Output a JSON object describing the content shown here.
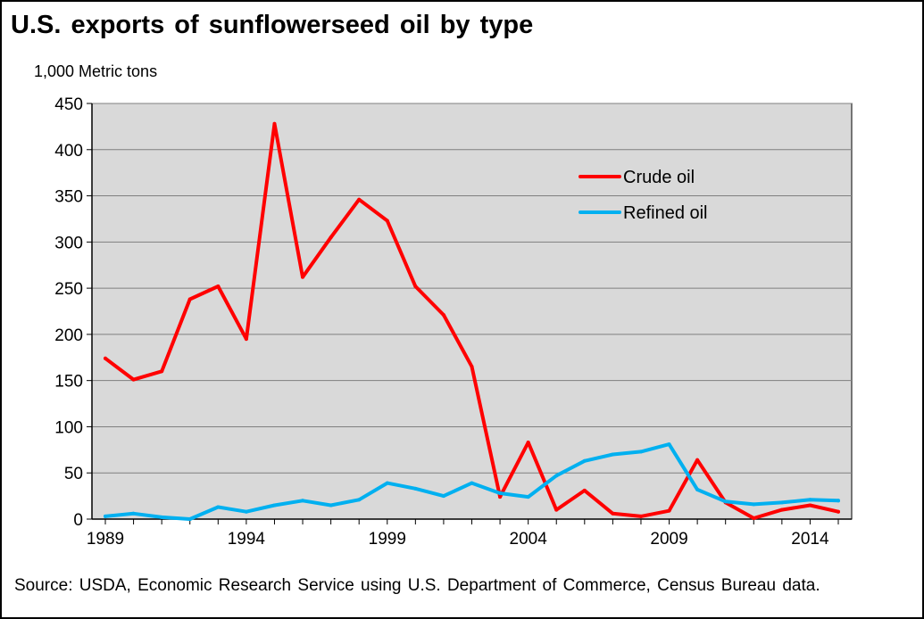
{
  "chart_data": {
    "type": "line",
    "title": "U.S. exports of sunflowerseed oil by type",
    "ylabel": "1,000 Metric tons",
    "xlabel": "",
    "x": [
      1989,
      1990,
      1991,
      1992,
      1993,
      1994,
      1995,
      1996,
      1997,
      1998,
      1999,
      2000,
      2001,
      2002,
      2003,
      2004,
      2005,
      2006,
      2007,
      2008,
      2009,
      2010,
      2011,
      2012,
      2013,
      2014,
      2015
    ],
    "x_ticks": [
      1989,
      1994,
      1999,
      2004,
      2009,
      2014
    ],
    "y_ticks": [
      0,
      50,
      100,
      150,
      200,
      250,
      300,
      350,
      400,
      450
    ],
    "ylim": [
      0,
      450
    ],
    "grid": true,
    "legend_position": "top-right",
    "plot_background": "#d9d9d9",
    "series": [
      {
        "name": "Crude oil",
        "color": "#ff0000",
        "values": [
          174,
          151,
          160,
          238,
          252,
          195,
          428,
          262,
          305,
          346,
          323,
          252,
          221,
          165,
          24,
          83,
          10,
          31,
          6,
          3,
          9,
          64,
          18,
          1,
          10,
          15,
          8
        ]
      },
      {
        "name": "Refined oil",
        "color": "#00b0f0",
        "values": [
          3,
          6,
          2,
          0,
          13,
          8,
          15,
          20,
          15,
          21,
          39,
          33,
          25,
          39,
          28,
          24,
          47,
          63,
          70,
          73,
          81,
          32,
          19,
          16,
          18,
          21,
          20
        ]
      }
    ]
  },
  "source_text": "Source:  USDA, Economic Research Service using U.S. Department of Commerce, Census Bureau data."
}
